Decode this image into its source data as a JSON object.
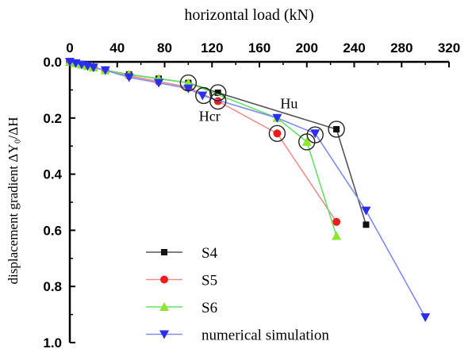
{
  "chart_data": {
    "type": "line",
    "title": "",
    "xlabel": "horizontal load (kN)",
    "ylabel": "displacement gradient ΔY₀/ΔH",
    "xlim": [
      0,
      320
    ],
    "ylim": [
      0.0,
      1.0
    ],
    "x_axis_position": "top",
    "y_inverted": true,
    "x_ticks": [
      "0",
      "40",
      "80",
      "120",
      "160",
      "200",
      "240",
      "280",
      "320"
    ],
    "y_ticks": [
      "0.0",
      "0.2",
      "0.4",
      "0.6",
      "0.8",
      "1.0"
    ],
    "grid": false,
    "legend_position": "bottom-left",
    "series": [
      {
        "name": "S4",
        "color": "#555555",
        "marker_color": "#111111",
        "marker": "square",
        "points": [
          [
            0,
            0
          ],
          [
            5,
            0.005
          ],
          [
            10,
            0.01
          ],
          [
            15,
            0.015
          ],
          [
            20,
            0.02
          ],
          [
            30,
            0.03
          ],
          [
            50,
            0.045
          ],
          [
            75,
            0.06
          ],
          [
            100,
            0.075
          ],
          [
            125,
            0.11
          ],
          [
            225,
            0.24
          ],
          [
            250,
            0.58
          ]
        ]
      },
      {
        "name": "S5",
        "color": "#f08c8c",
        "marker_color": "#ee1c1c",
        "marker": "circle",
        "points": [
          [
            0,
            0
          ],
          [
            5,
            0.005
          ],
          [
            10,
            0.01
          ],
          [
            15,
            0.015
          ],
          [
            20,
            0.02
          ],
          [
            30,
            0.03
          ],
          [
            50,
            0.05
          ],
          [
            75,
            0.07
          ],
          [
            100,
            0.09
          ],
          [
            125,
            0.14
          ],
          [
            175,
            0.255
          ],
          [
            225,
            0.57
          ]
        ]
      },
      {
        "name": "S6",
        "color": "#66e066",
        "marker_color": "#8ee62a",
        "marker": "triangle-up",
        "points": [
          [
            0,
            0
          ],
          [
            5,
            0.005
          ],
          [
            10,
            0.01
          ],
          [
            15,
            0.015
          ],
          [
            20,
            0.02
          ],
          [
            30,
            0.03
          ],
          [
            50,
            0.045
          ],
          [
            75,
            0.06
          ],
          [
            100,
            0.075
          ],
          [
            175,
            0.2
          ],
          [
            200,
            0.285
          ],
          [
            225,
            0.62
          ]
        ]
      },
      {
        "name": "numerical simulation",
        "color": "#7f8cf0",
        "marker_color": "#2a2ef0",
        "marker": "triangle-down",
        "points": [
          [
            0,
            0
          ],
          [
            5,
            0.005
          ],
          [
            10,
            0.01
          ],
          [
            15,
            0.015
          ],
          [
            20,
            0.02
          ],
          [
            30,
            0.03
          ],
          [
            50,
            0.055
          ],
          [
            75,
            0.075
          ],
          [
            100,
            0.095
          ],
          [
            112,
            0.12
          ],
          [
            175,
            0.2
          ],
          [
            207,
            0.255
          ],
          [
            250,
            0.53
          ],
          [
            300,
            0.91
          ]
        ]
      }
    ],
    "highlighted_points": [
      [
        100,
        0.075
      ],
      [
        113,
        0.12
      ],
      [
        125,
        0.11
      ],
      [
        125,
        0.14
      ],
      [
        175,
        0.255
      ],
      [
        200,
        0.285
      ],
      [
        207,
        0.26
      ],
      [
        225,
        0.24
      ]
    ],
    "annotations": [
      {
        "text": "Hcr",
        "x": 118,
        "y": 0.21
      },
      {
        "text": "Hu",
        "x": 185,
        "y": 0.165
      }
    ]
  }
}
